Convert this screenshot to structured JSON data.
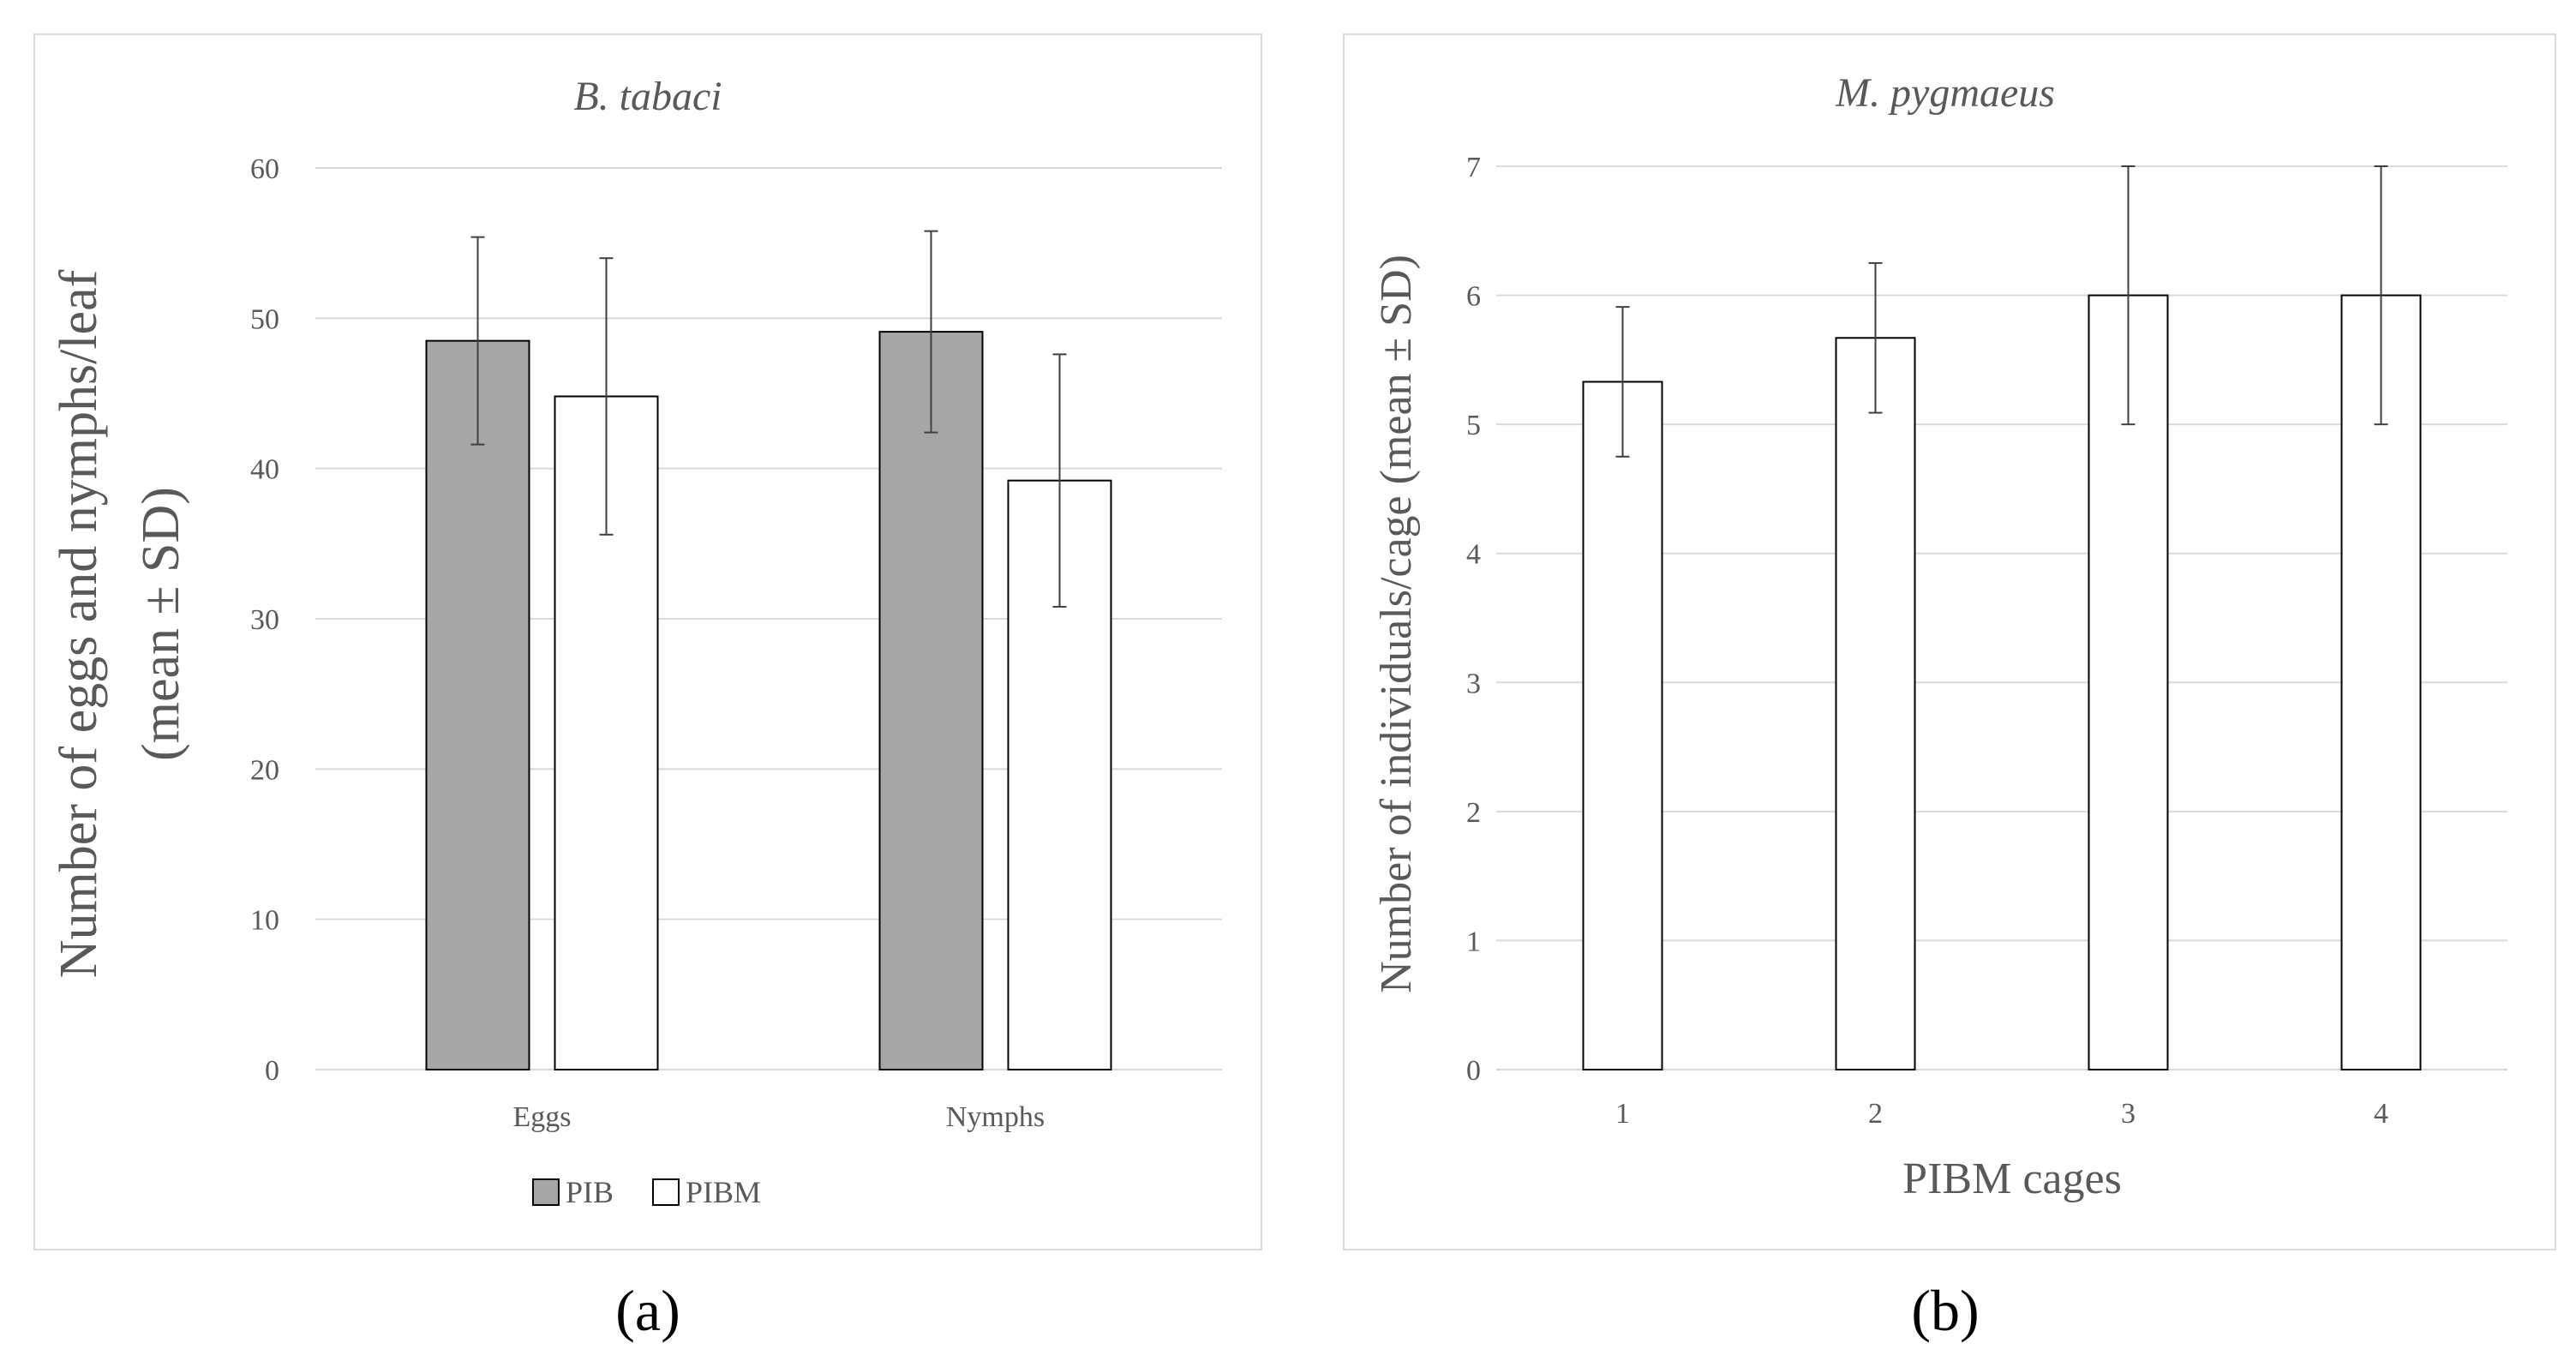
{
  "chart_data": [
    {
      "type": "bar",
      "title": "B. tabaci",
      "ylabel_line1": "Number of eggs and nymphs/leaf",
      "ylabel_line2": "(mean ± SD)",
      "xlabel": "",
      "categories": [
        "Eggs",
        "Nymphs"
      ],
      "ylim": [
        0,
        60
      ],
      "yticks": [
        0,
        10,
        20,
        30,
        40,
        50,
        60
      ],
      "series": [
        {
          "name": "PIB",
          "values": [
            48.5,
            49.1
          ],
          "sd": [
            6.9,
            6.7
          ],
          "color": "#a6a6a6"
        },
        {
          "name": "PIBM",
          "values": [
            44.8,
            39.2
          ],
          "sd": [
            9.2,
            8.4
          ],
          "color": "#ffffff"
        }
      ],
      "legend": "bottom",
      "panel_label": "(a)"
    },
    {
      "type": "bar",
      "title": "M. pygmaeus",
      "ylabel": "Number of individuals/cage (mean ± SD)",
      "xlabel": "PIBM cages",
      "categories": [
        "1",
        "2",
        "3",
        "4"
      ],
      "ylim": [
        0,
        7
      ],
      "yticks": [
        0,
        1,
        2,
        3,
        4,
        5,
        6,
        7
      ],
      "series": [
        {
          "name": "M. pygmaeus",
          "values": [
            5.33,
            5.67,
            6.0,
            6.0
          ],
          "sd": [
            0.58,
            0.58,
            1.0,
            1.0
          ],
          "color": "#ffffff"
        }
      ],
      "panel_label": "(b)"
    }
  ]
}
